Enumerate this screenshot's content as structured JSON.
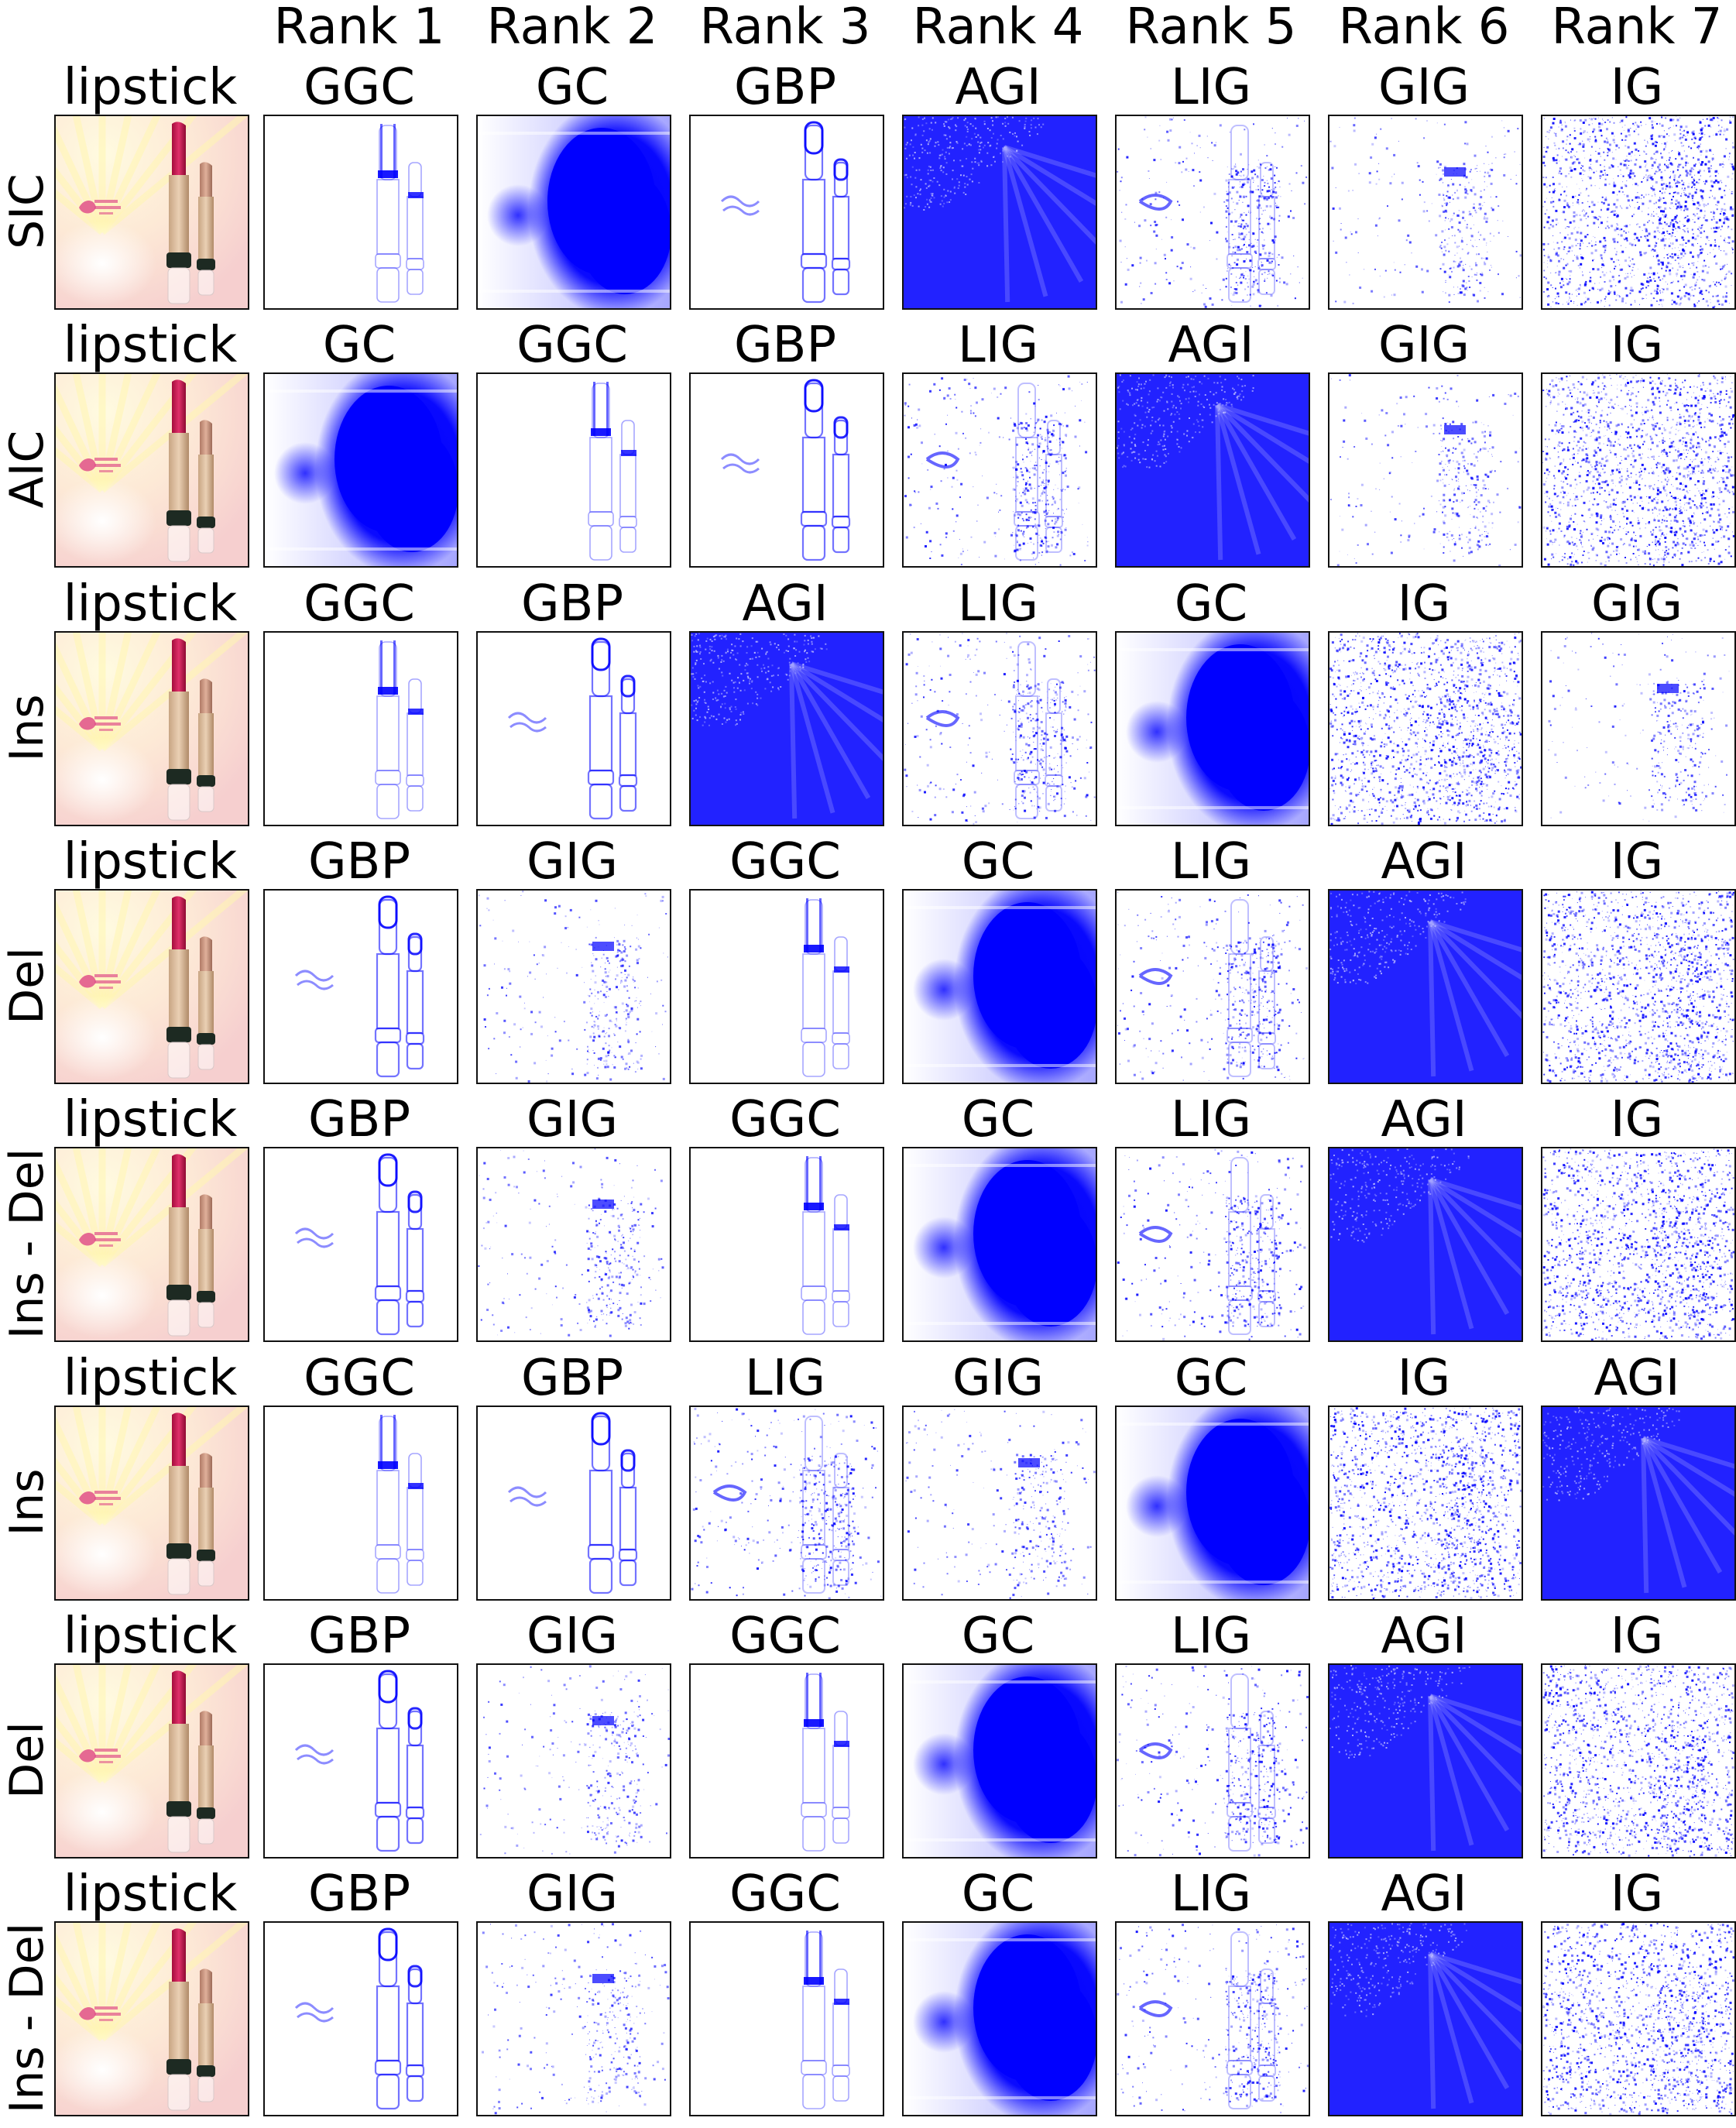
{
  "rank_headers": [
    "Rank 1",
    "Rank 2",
    "Rank 3",
    "Rank 4",
    "Rank 5",
    "Rank 6",
    "Rank 7"
  ],
  "accent_color": "#0000ff",
  "rows": [
    {
      "label": "SIC",
      "image_label": "lipstick",
      "methods": [
        "GGC",
        "GC",
        "GBP",
        "AGI",
        "LIG",
        "GIG",
        "IG"
      ]
    },
    {
      "label": "AIC",
      "image_label": "lipstick",
      "methods": [
        "GC",
        "GGC",
        "GBP",
        "LIG",
        "AGI",
        "GIG",
        "IG"
      ]
    },
    {
      "label": "Ins",
      "image_label": "lipstick",
      "methods": [
        "GGC",
        "GBP",
        "AGI",
        "LIG",
        "GC",
        "IG",
        "GIG"
      ]
    },
    {
      "label": "Del",
      "image_label": "lipstick",
      "methods": [
        "GBP",
        "GIG",
        "GGC",
        "GC",
        "LIG",
        "AGI",
        "IG"
      ]
    },
    {
      "label": "Ins - Del",
      "image_label": "lipstick",
      "methods": [
        "GBP",
        "GIG",
        "GGC",
        "GC",
        "LIG",
        "AGI",
        "IG"
      ]
    },
    {
      "label": "Ins",
      "image_label": "lipstick",
      "methods": [
        "GGC",
        "GBP",
        "LIG",
        "GIG",
        "GC",
        "IG",
        "AGI"
      ]
    },
    {
      "label": "Del",
      "image_label": "lipstick",
      "methods": [
        "GBP",
        "GIG",
        "GGC",
        "GC",
        "LIG",
        "AGI",
        "IG"
      ]
    },
    {
      "label": "Ins - Del",
      "image_label": "lipstick",
      "methods": [
        "GBP",
        "GIG",
        "GGC",
        "GC",
        "LIG",
        "AGI",
        "IG"
      ]
    }
  ]
}
